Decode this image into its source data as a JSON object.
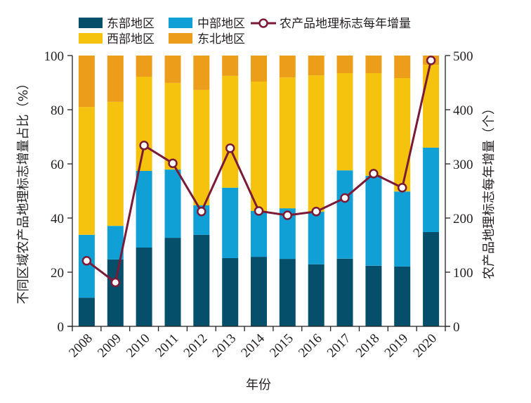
{
  "chart_data": {
    "type": "bar",
    "stacked": true,
    "title": "",
    "xlabel": "年份",
    "ylabel": "不同区域农产品地理标志增量占比（%）",
    "y2label": "农产品地理标志每年增量（个）",
    "ylim": [
      0,
      100
    ],
    "y2lim": [
      0,
      500
    ],
    "yticks": [
      0,
      20,
      40,
      60,
      80,
      100
    ],
    "y2ticks": [
      0,
      100,
      200,
      300,
      400,
      500
    ],
    "grid": false,
    "legend_position": "top",
    "categories": [
      "2008",
      "2009",
      "2010",
      "2011",
      "2012",
      "2013",
      "2014",
      "2015",
      "2016",
      "2017",
      "2018",
      "2019",
      "2020"
    ],
    "series": [
      {
        "name": "东部地区",
        "axis": "left",
        "color": "#064f6b",
        "values": [
          10.6,
          24.7,
          29.1,
          32.7,
          33.8,
          25.2,
          25.7,
          24.9,
          22.9,
          25.0,
          22.4,
          22.1,
          34.8
        ]
      },
      {
        "name": "中部地区",
        "axis": "left",
        "color": "#10a0d6",
        "values": [
          23.2,
          12.4,
          28.3,
          25.2,
          10.9,
          26.0,
          16.9,
          18.7,
          19.4,
          32.6,
          33.2,
          27.7,
          31.2
        ]
      },
      {
        "name": "西部地区",
        "axis": "left",
        "color": "#f5c20e",
        "values": [
          47.2,
          45.8,
          34.8,
          32.0,
          42.6,
          41.3,
          47.8,
          48.3,
          50.4,
          35.9,
          37.9,
          41.9,
          30.6
        ]
      },
      {
        "name": "东北地区",
        "axis": "left",
        "color": "#ec9e1b",
        "values": [
          19.0,
          17.1,
          7.8,
          10.1,
          12.7,
          7.5,
          9.6,
          8.1,
          7.3,
          6.5,
          6.5,
          8.3,
          3.4
        ]
      }
    ],
    "line_series": {
      "name": "农产品地理标志每年增量",
      "axis": "right",
      "color": "#7a1a36",
      "values": [
        121,
        81,
        334,
        301,
        212,
        329,
        213,
        205,
        212,
        237,
        282,
        256,
        491
      ]
    }
  }
}
